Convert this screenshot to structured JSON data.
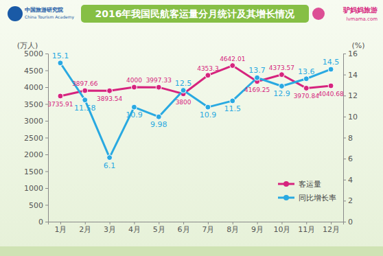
{
  "chart_data": {
    "type": "line",
    "title": "2016年我国民航客运量分月统计及其增长情况",
    "annotations": [
      "中国旅游研究院",
      "China Tourism Academy",
      "驴妈妈旅游",
      "lvmama.com"
    ],
    "ylabel": "(万人)",
    "y2label": "(%)",
    "categories": [
      "1月",
      "2月",
      "3月",
      "4月",
      "5月",
      "6月",
      "7月",
      "8月",
      "9月",
      "10月",
      "11月",
      "12月"
    ],
    "series": [
      {
        "name": "客运量",
        "color": "#d6247e",
        "marker": "circle",
        "values": [
          3735.91,
          3897.66,
          3893.54,
          4000,
          3997.33,
          3800,
          4353.3,
          4642.01,
          4169.25,
          4373.57,
          3970.84,
          4040.68
        ]
      },
      {
        "name": "同比增长率",
        "color": "#29a9e1",
        "marker": "circle",
        "axis": "y2",
        "values": [
          15.1,
          11.58,
          6.1,
          10.9,
          9.98,
          12.5,
          10.9,
          11.5,
          13.7,
          12.9,
          13.6,
          14.5
        ]
      }
    ],
    "ylim": [
      0,
      5000
    ],
    "yticks": [
      0,
      500,
      1000,
      1500,
      2000,
      2500,
      3000,
      3500,
      4000,
      4500,
      5000
    ],
    "y2lim": [
      0,
      16
    ],
    "y2ticks": [
      0,
      2,
      4,
      6,
      8,
      10,
      12,
      14,
      16
    ],
    "grid": false,
    "legend": "lower right",
    "data_labels": true
  }
}
